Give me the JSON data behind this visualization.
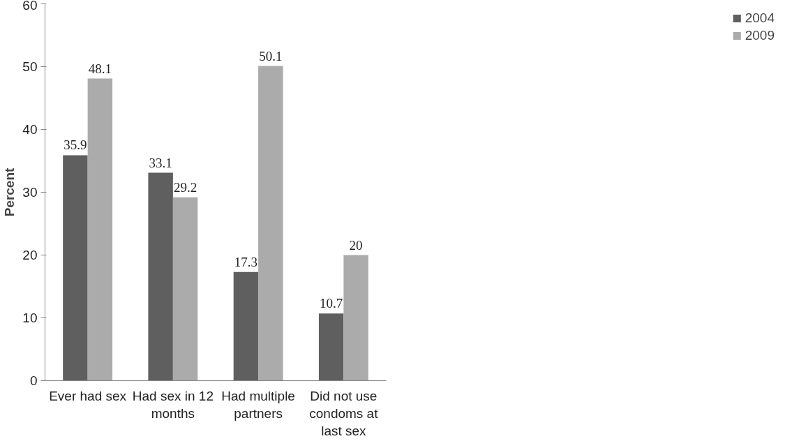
{
  "chart_data": {
    "type": "bar",
    "ylabel": "Percent",
    "categories": [
      "Ever had sex",
      "Had sex in 12 months",
      "Had multiple partners",
      "Did not use condoms at last sex"
    ],
    "series": [
      {
        "name": "2004",
        "color": "#5f5f5f",
        "values": [
          35.9,
          33.1,
          17.3,
          10.7
        ]
      },
      {
        "name": "2009",
        "color": "#ababab",
        "values": [
          48.1,
          29.2,
          50.1,
          20
        ]
      }
    ],
    "ylim": [
      0,
      60
    ],
    "yticks": [
      0,
      10,
      20,
      30,
      40,
      50,
      60
    ],
    "grid": false,
    "legend": "right",
    "data_labels": true
  }
}
